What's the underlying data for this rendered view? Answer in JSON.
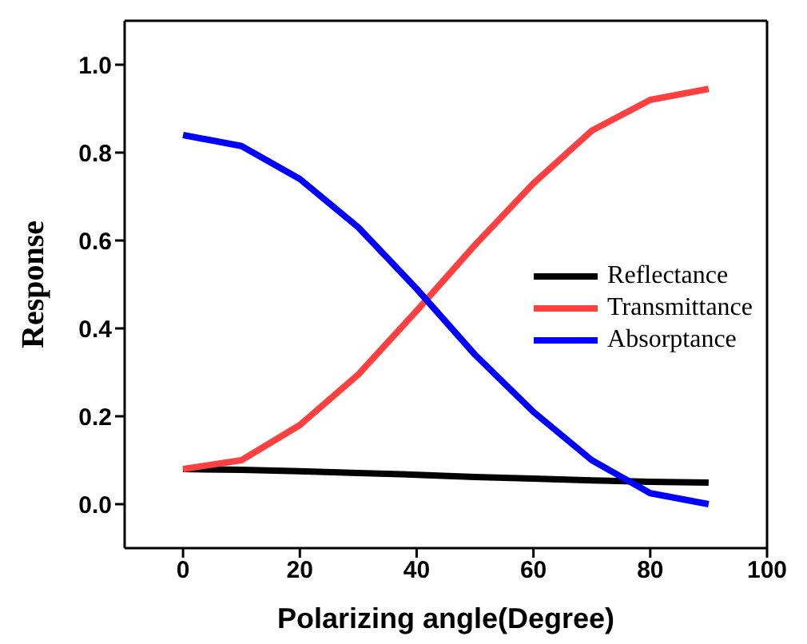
{
  "chart_data": {
    "type": "line",
    "xlabel": "Polarizing angle(Degree)",
    "ylabel": "Response",
    "x": [
      0,
      10,
      20,
      30,
      40,
      50,
      60,
      70,
      80,
      90
    ],
    "series": [
      {
        "name": "Reflectance",
        "color": "#000000",
        "values": [
          0.08,
          0.078,
          0.075,
          0.071,
          0.067,
          0.062,
          0.058,
          0.054,
          0.051,
          0.049
        ]
      },
      {
        "name": "Transmittance",
        "color": "#ff4040",
        "values": [
          0.08,
          0.1,
          0.18,
          0.295,
          0.44,
          0.59,
          0.73,
          0.85,
          0.92,
          0.945
        ]
      },
      {
        "name": "Absorptance",
        "color": "#0000ff",
        "values": [
          0.84,
          0.815,
          0.74,
          0.63,
          0.49,
          0.34,
          0.21,
          0.1,
          0.025,
          0.0
        ]
      }
    ],
    "xlim": [
      -10,
      100
    ],
    "xticks": [
      0,
      20,
      40,
      60,
      80,
      100
    ],
    "ylim": [
      -0.1,
      1.1
    ],
    "yticks": [
      {
        "value": 0,
        "label": "0.0"
      },
      {
        "value": 0.2,
        "label": "0.2"
      },
      {
        "value": 0.4,
        "label": "0.4"
      },
      {
        "value": 0.6,
        "label": "0.6"
      },
      {
        "value": 0.8,
        "label": "0.8"
      },
      {
        "value": 1,
        "label": "1.0"
      }
    ],
    "legend": "right",
    "marker": "none",
    "line_style": "solid",
    "grid": false
  }
}
